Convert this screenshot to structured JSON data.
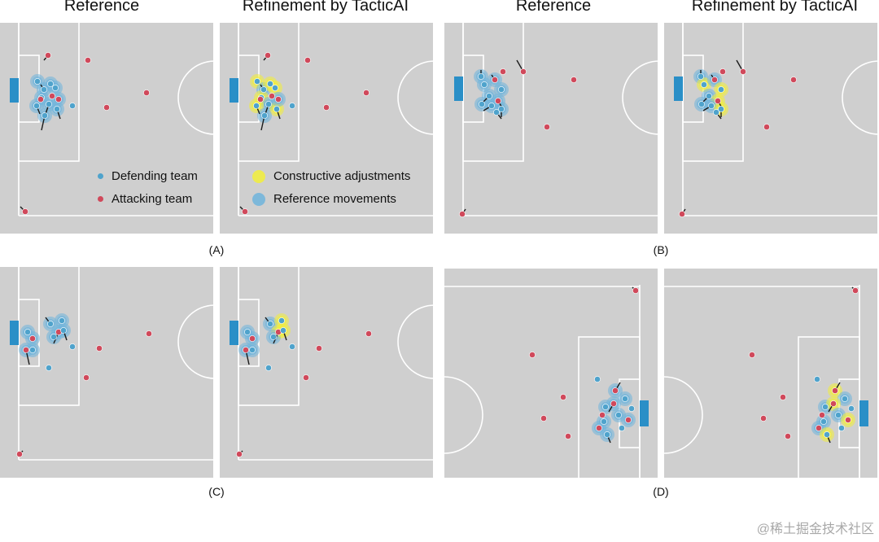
{
  "column_titles": [
    "Reference",
    "Refinement by TacticAI",
    "Reference",
    "Refinement by TacticAI"
  ],
  "panel_labels": [
    "(A)",
    "(B)",
    "(C)",
    "(D)"
  ],
  "legend": {
    "defending": "Defending team",
    "attacking": "Attacking team",
    "constructive": "Constructive adjustments",
    "reference": "Reference movements"
  },
  "watermark": "@稀土掘金技术社区",
  "colors": {
    "pitch": "#cfcfcf",
    "line": "#ffffff",
    "goal": "#2a8fc7",
    "defender": "#4fa3cc",
    "attacker": "#d0495b",
    "reference_halo": "#6fb4dc",
    "constructive_halo": "#f2ee3a"
  }
}
